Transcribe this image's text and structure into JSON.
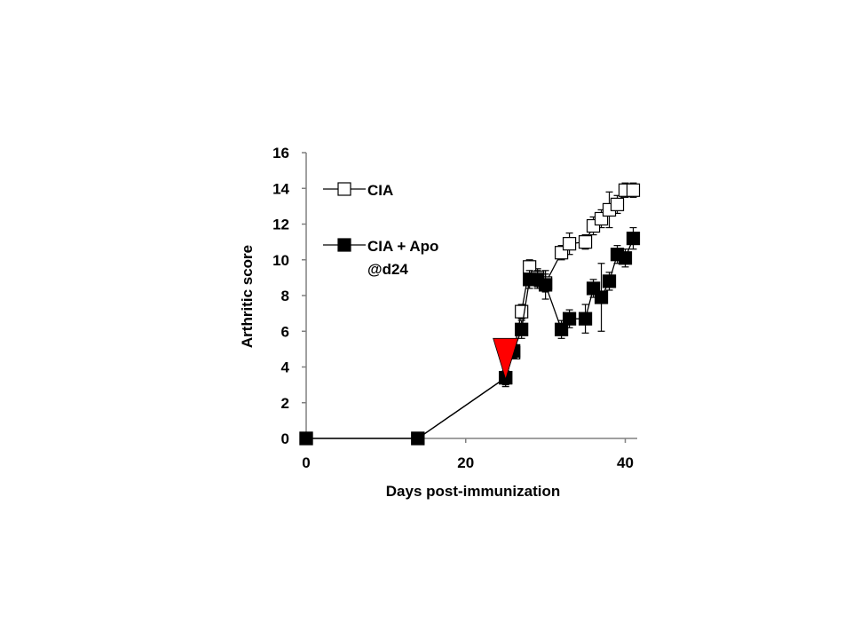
{
  "chart_data": {
    "type": "line",
    "xlabel": "Days post-immunization",
    "ylabel": "Arthritic score",
    "xlim": [
      0,
      41.5
    ],
    "ylim": [
      0,
      16
    ],
    "x_ticks": [
      0,
      20,
      40
    ],
    "y_ticks": [
      0,
      2,
      4,
      6,
      8,
      10,
      12,
      14,
      16
    ],
    "grid": false,
    "legend_position": "top-left",
    "series": [
      {
        "name": "CIA",
        "marker": "open-square",
        "color": "#000000",
        "x": [
          0,
          14,
          25,
          26,
          27,
          28,
          29,
          30,
          32,
          33,
          35,
          36,
          37,
          38,
          39,
          40,
          41
        ],
        "y": [
          0,
          0,
          3.4,
          4.8,
          7.1,
          9.6,
          9.0,
          8.7,
          10.4,
          10.9,
          11.0,
          11.9,
          12.3,
          12.8,
          13.1,
          13.9,
          13.9
        ],
        "err": [
          0,
          0,
          0.4,
          0.3,
          0.4,
          0.4,
          0.5,
          0.5,
          0.4,
          0.6,
          0.4,
          0.5,
          0.5,
          1.0,
          0.5,
          0.4,
          0.4
        ]
      },
      {
        "name": "CIA + Apo\n@d24",
        "marker": "filled-square",
        "color": "#000000",
        "x": [
          0,
          14,
          25,
          26,
          27,
          28,
          29,
          30,
          32,
          33,
          35,
          36,
          37,
          38,
          39,
          40,
          41
        ],
        "y": [
          0,
          0,
          3.4,
          4.9,
          6.1,
          8.9,
          8.9,
          8.6,
          6.1,
          6.7,
          6.7,
          8.4,
          7.9,
          8.8,
          10.3,
          10.1,
          11.2
        ],
        "err": [
          0,
          0,
          0.5,
          0.4,
          0.5,
          0.5,
          0.5,
          0.8,
          0.5,
          0.5,
          0.8,
          0.5,
          1.9,
          0.5,
          0.5,
          0.5,
          0.6
        ]
      }
    ],
    "annotations": [
      {
        "type": "triangle-down",
        "color": "#ff0000",
        "x": 25,
        "y": 5.6
      }
    ]
  }
}
